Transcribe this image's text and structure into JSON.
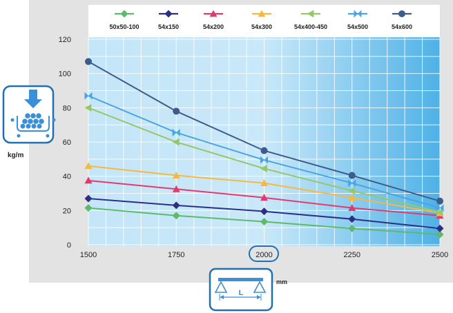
{
  "chart_data": {
    "type": "line",
    "title": "",
    "xlabel": "",
    "ylabel": "",
    "y_unit": "kg/m",
    "x_unit": "mm",
    "x": [
      1500,
      1750,
      2000,
      2250,
      2500
    ],
    "x_tick_labels": [
      "1500",
      "1750",
      "2000",
      "2250",
      "2500"
    ],
    "y_tick_labels": [
      "0",
      "20",
      "40",
      "60",
      "80",
      "100",
      "120"
    ],
    "ylim": [
      0,
      125
    ],
    "xlim": [
      1500,
      2500
    ],
    "grid": true,
    "legend_position": "top",
    "highlighted_x_tick": "2000",
    "series": [
      {
        "name": "50x50-100",
        "color": "#5dba6a",
        "marker": "diamond",
        "values": [
          21.5,
          17,
          13.5,
          9.5,
          6
        ]
      },
      {
        "name": "54x150",
        "color": "#2c2f85",
        "marker": "diamond",
        "values": [
          27,
          23,
          19.5,
          15,
          9.5
        ]
      },
      {
        "name": "54x200",
        "color": "#e5396d",
        "marker": "triangle",
        "values": [
          37.5,
          32.5,
          27.5,
          21.5,
          17
        ]
      },
      {
        "name": "54x300",
        "color": "#f6b93e",
        "marker": "triangle",
        "values": [
          46,
          40.5,
          36,
          27.5,
          18.5
        ]
      },
      {
        "name": "54x400-450",
        "color": "#93c96a",
        "marker": "triangle-left",
        "values": [
          80,
          60,
          44.5,
          31.5,
          19
        ]
      },
      {
        "name": "54x500",
        "color": "#4aa5e3",
        "marker": "bowtie",
        "values": [
          87,
          65.5,
          49.5,
          36,
          21.5
        ]
      },
      {
        "name": "54x600",
        "color": "#3d5c8a",
        "marker": "circle",
        "values": [
          107,
          78,
          55,
          40.5,
          25.5
        ]
      }
    ]
  },
  "icons": {
    "load": "distributed-load-icon",
    "span": "beam-span-icon"
  },
  "span_label": "L",
  "colors": {
    "frame_bg": "#e3e3e3",
    "plot_light": "#daf0fb",
    "plot_dark": "#4fb1e6",
    "icon_border": "#1f6fb4",
    "icon_blue": "#3a8fd6"
  }
}
